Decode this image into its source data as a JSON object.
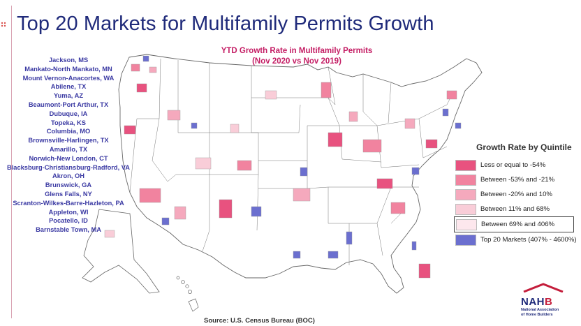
{
  "title": "Top 20 Markets for Multifamily Permits Growth",
  "map_title_line1": "YTD Growth Rate in Multifamily Permits",
  "map_title_line2": "(Nov 2020 vs Nov 2019)",
  "top_markets": [
    "Jackson, MS",
    "Mankato-North Mankato, MN",
    "Mount Vernon-Anacortes, WA",
    "Abilene, TX",
    "Yuma, AZ",
    "Beaumont-Port Arthur, TX",
    "Dubuque, IA",
    "Topeka, KS",
    "Columbia, MO",
    "Brownsville-Harlingen, TX",
    "Amarillo, TX",
    "Norwich-New London, CT",
    "Blacksburg-Christiansburg-Radford, VA",
    "Akron, OH",
    "Brunswick, GA",
    "Glens Falls, NY",
    "Scranton-Wilkes-Barre-Hazleton, PA",
    "Appleton, WI",
    "Pocatello, ID",
    "Barnstable Town, MA"
  ],
  "legend": {
    "title": "Growth Rate by Quintile",
    "items": [
      {
        "label": "Less or equal to -54%",
        "color": "#e8527f"
      },
      {
        "label": "Between -53% and -21%",
        "color": "#f1839f"
      },
      {
        "label": "Between -20% and 10%",
        "color": "#f5a9bd"
      },
      {
        "label": "Between 11%  and 68%",
        "color": "#f9cdd8"
      },
      {
        "label": "Between 69% and 406%",
        "color": "#fde7ed"
      },
      {
        "label": "Top 20 Markets (407% - 4600%)",
        "color": "#6b6fcf"
      }
    ]
  },
  "source": "Source: U.S. Census Bureau (BOC)",
  "logo": {
    "mark_prefix": "NAH",
    "mark_suffix": "B",
    "line1": "National Association",
    "line2": "of Home Builders"
  }
}
